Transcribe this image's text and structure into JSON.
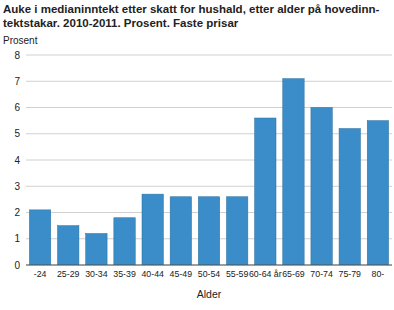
{
  "chart_data": {
    "type": "bar",
    "title": [
      "Auke i medianinntekt etter skatt for hushald, etter alder på hovedinn-",
      "tektstakar. 2010-2011. Prosent. Faste prisar"
    ],
    "y_label": "Prosent",
    "x_label": "Alder",
    "categories": [
      "-24",
      "25-29",
      "30-34",
      "35-39",
      "40-44",
      "45-49",
      "50-54",
      "55-59",
      "60-64 år",
      "65-69",
      "70-74",
      "75-79",
      "80-"
    ],
    "values": [
      2.1,
      1.5,
      1.2,
      1.8,
      2.7,
      2.6,
      2.6,
      2.6,
      5.6,
      7.1,
      6.0,
      5.2,
      5.5
    ],
    "color": "#3a8dc8",
    "ylim": [
      0,
      8
    ],
    "yticks": [
      0,
      1,
      2,
      3,
      4,
      5,
      6,
      7,
      8
    ],
    "grid": true
  }
}
